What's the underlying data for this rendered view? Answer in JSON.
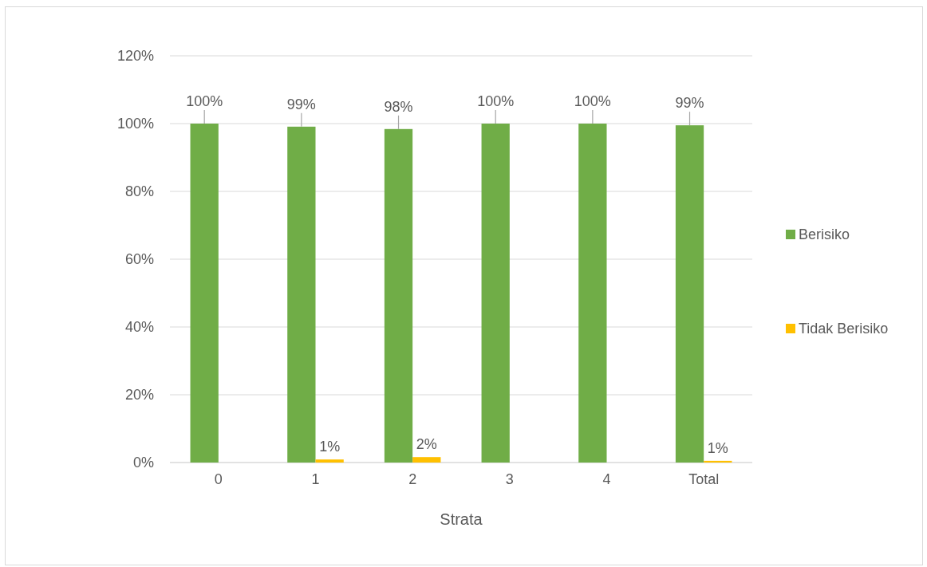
{
  "chart_data": {
    "type": "bar",
    "xlabel": "Strata",
    "categories": [
      "0",
      "1",
      "2",
      "3",
      "4",
      "Total"
    ],
    "series": [
      {
        "name": "Berisiko",
        "color": "#70ad47",
        "values": [
          100,
          99.1,
          98.4,
          100,
          100,
          99.5
        ],
        "value_labels": [
          "100%",
          "99%",
          "98%",
          "100%",
          "100%",
          "99%"
        ]
      },
      {
        "name": "Tidak Berisiko",
        "color": "#ffc000",
        "values": [
          0,
          0.9,
          1.6,
          0,
          0,
          0.5
        ],
        "value_labels": [
          null,
          "1%",
          "2%",
          null,
          null,
          "1%"
        ]
      }
    ],
    "ylim": [
      0,
      120
    ],
    "yticks": [
      {
        "value": 0,
        "label": "0%"
      },
      {
        "value": 20,
        "label": "20%"
      },
      {
        "value": 40,
        "label": "40%"
      },
      {
        "value": 60,
        "label": "60%"
      },
      {
        "value": 80,
        "label": "80%"
      },
      {
        "value": 100,
        "label": "100%"
      },
      {
        "value": 120,
        "label": "120%"
      }
    ],
    "grid": "y",
    "legend": "right"
  }
}
